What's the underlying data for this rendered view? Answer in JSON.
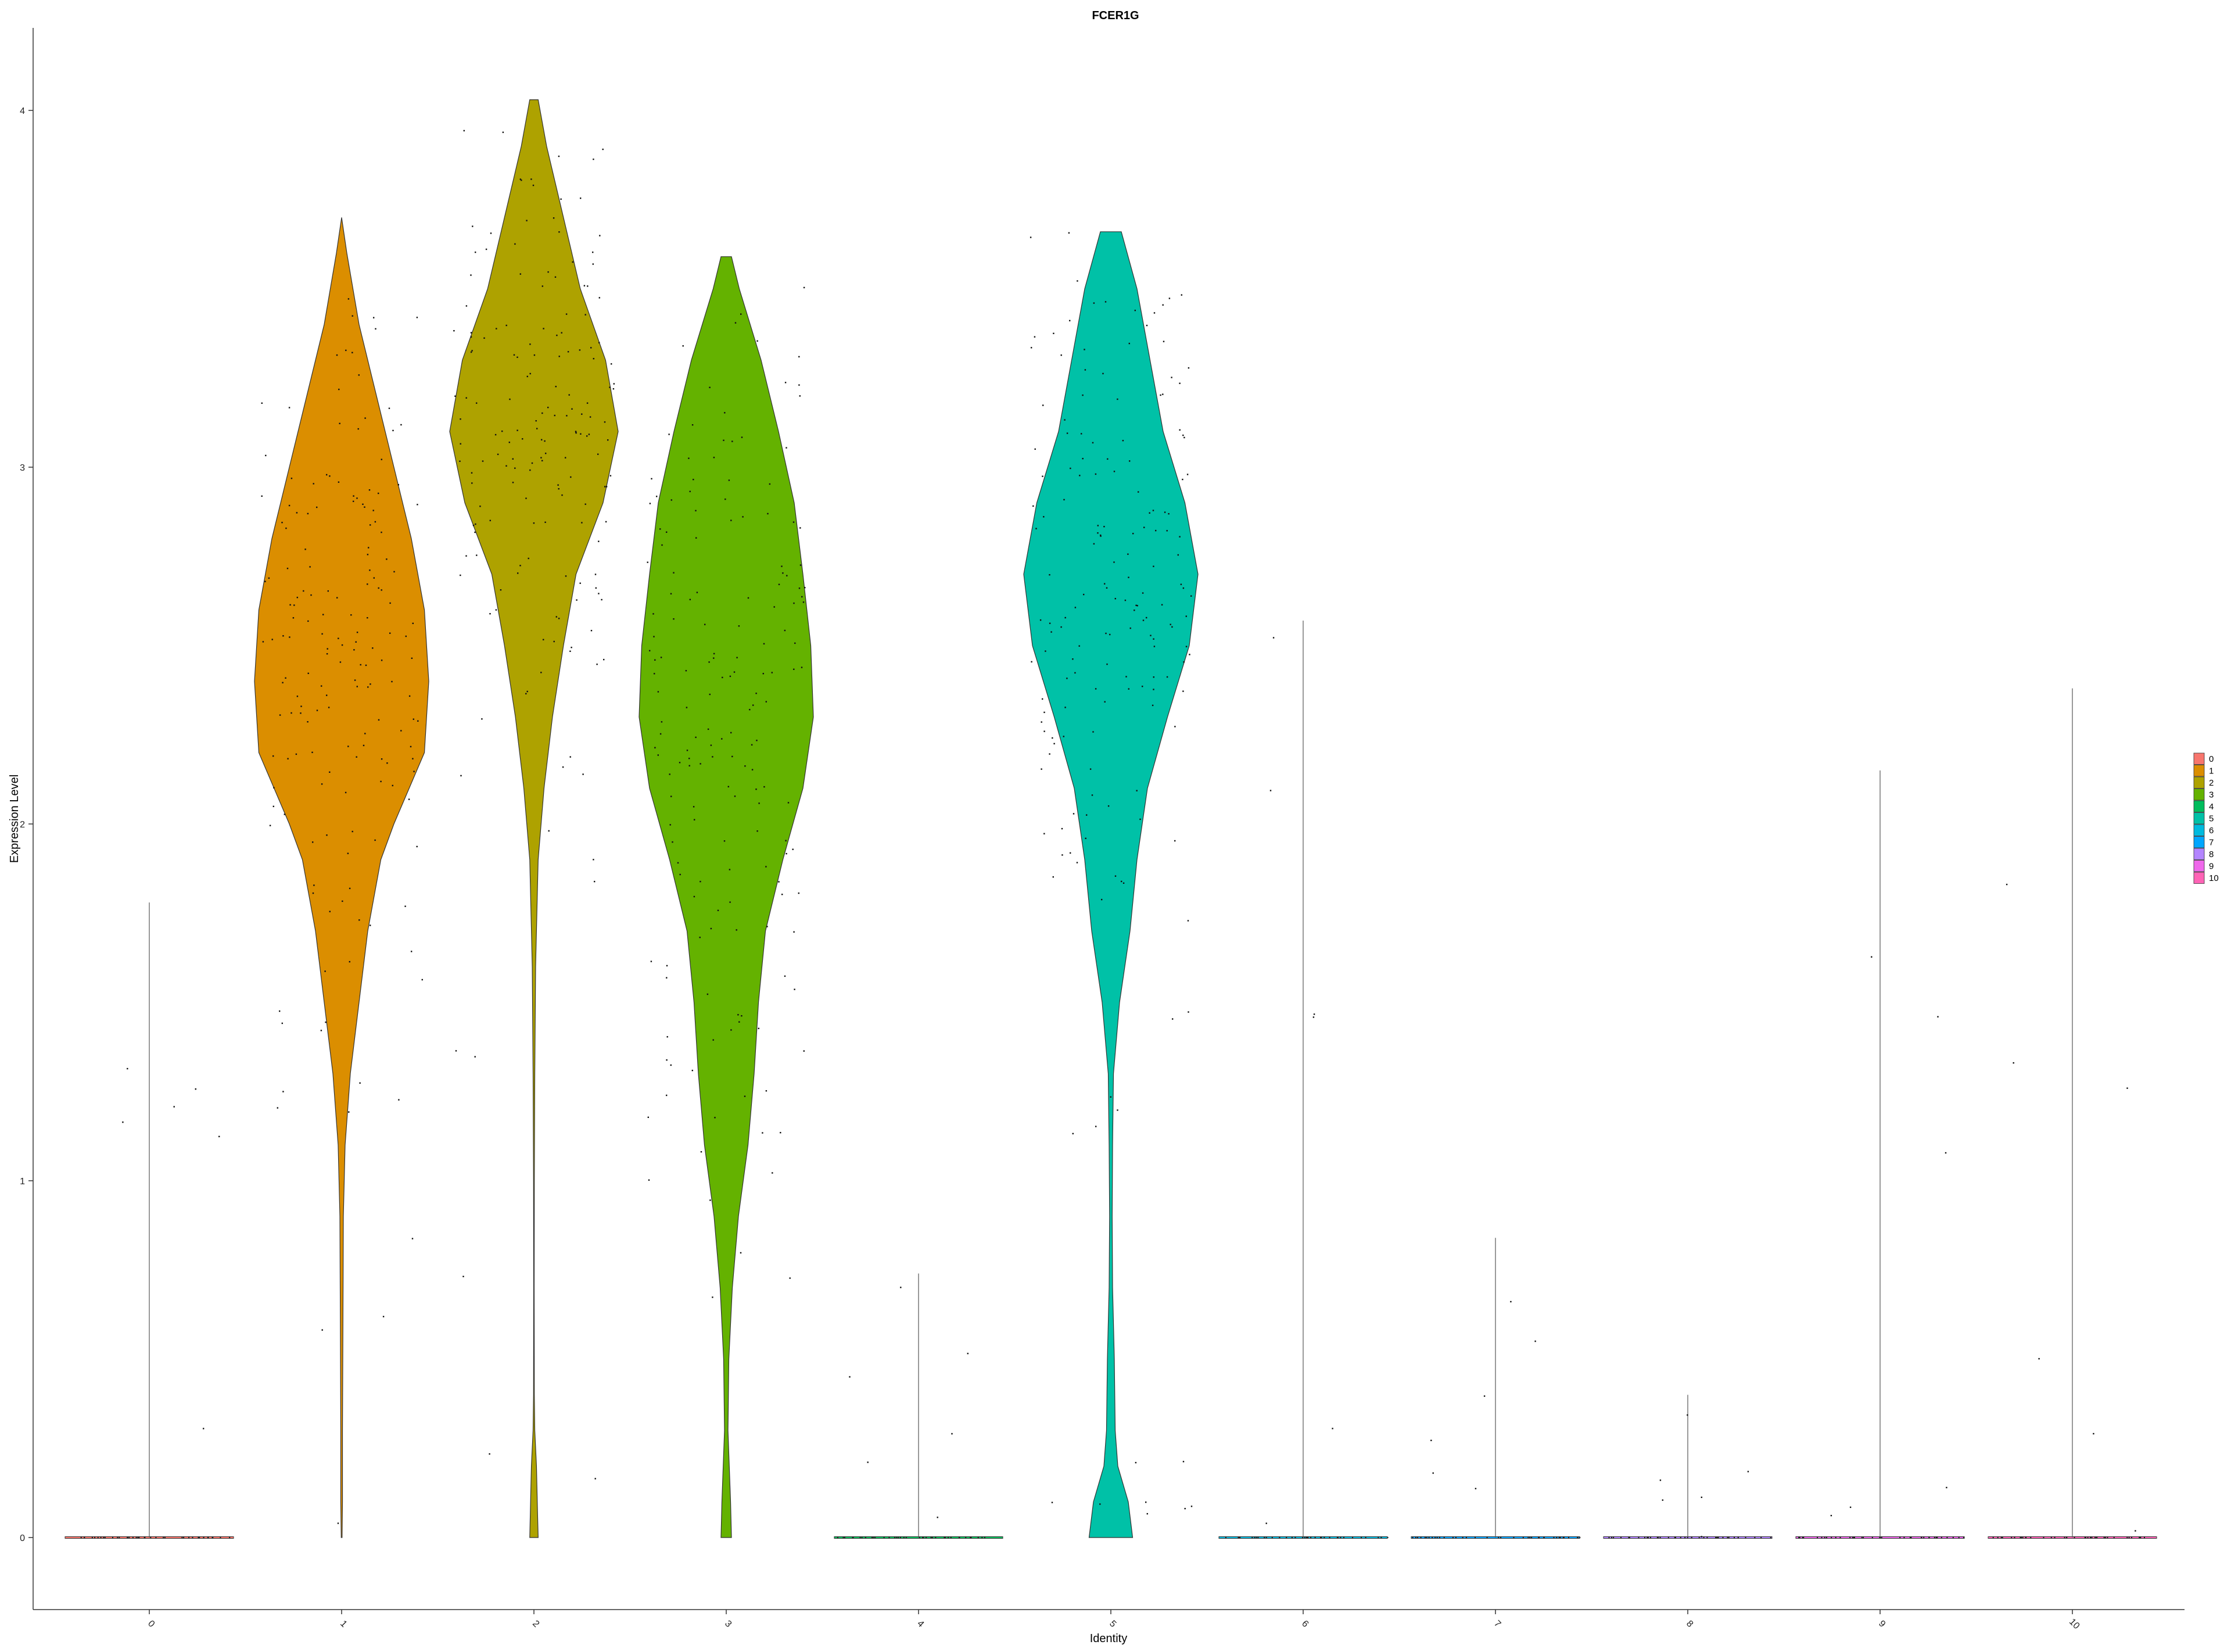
{
  "chart_data": {
    "type": "violin",
    "title": "FCER1G",
    "xlabel": "Identity",
    "ylabel": "Expression Level",
    "ylim": [
      -0.18,
      4.22
    ],
    "yticks": [
      0,
      1,
      2,
      3,
      4
    ],
    "legend_placement": "right",
    "categories": [
      "0",
      "1",
      "2",
      "3",
      "4",
      "5",
      "6",
      "7",
      "8",
      "9",
      "10"
    ],
    "colors": [
      "#F8766D",
      "#DB8E00",
      "#AEA200",
      "#64B200",
      "#00BD5C",
      "#00C1A7",
      "#00BADE",
      "#00A6FF",
      "#B385FF",
      "#EF67EB",
      "#FF63B6"
    ],
    "series": [
      {
        "name": "0",
        "max": 1.78,
        "violin": []
      },
      {
        "name": "1",
        "max": 3.7,
        "violin": [
          [
            0,
            0.005
          ],
          [
            0.1,
            0.01
          ],
          [
            0.3,
            0.01
          ],
          [
            0.6,
            0.015
          ],
          [
            0.9,
            0.02
          ],
          [
            1.1,
            0.04
          ],
          [
            1.3,
            0.1
          ],
          [
            1.5,
            0.2
          ],
          [
            1.7,
            0.3
          ],
          [
            1.9,
            0.45
          ],
          [
            2.0,
            0.6
          ],
          [
            2.2,
            0.95
          ],
          [
            2.4,
            1.0
          ],
          [
            2.6,
            0.95
          ],
          [
            2.8,
            0.8
          ],
          [
            3.0,
            0.6
          ],
          [
            3.2,
            0.4
          ],
          [
            3.4,
            0.2
          ],
          [
            3.6,
            0.06
          ],
          [
            3.7,
            0.0
          ]
        ]
      },
      {
        "name": "2",
        "max": 4.03,
        "violin": [
          [
            0,
            0.05
          ],
          [
            0.1,
            0.04
          ],
          [
            0.2,
            0.03
          ],
          [
            0.3,
            0.01
          ],
          [
            0.4,
            0.005
          ],
          [
            0.7,
            0.003
          ],
          [
            1.0,
            0.005
          ],
          [
            1.3,
            0.01
          ],
          [
            1.6,
            0.02
          ],
          [
            1.9,
            0.05
          ],
          [
            2.1,
            0.12
          ],
          [
            2.3,
            0.22
          ],
          [
            2.5,
            0.35
          ],
          [
            2.7,
            0.5
          ],
          [
            2.9,
            0.82
          ],
          [
            3.1,
            1.0
          ],
          [
            3.3,
            0.85
          ],
          [
            3.5,
            0.55
          ],
          [
            3.7,
            0.35
          ],
          [
            3.9,
            0.15
          ],
          [
            4.03,
            0.05
          ]
        ]
      },
      {
        "name": "3",
        "max": 3.59,
        "violin": [
          [
            0,
            0.06
          ],
          [
            0.1,
            0.05
          ],
          [
            0.3,
            0.02
          ],
          [
            0.5,
            0.03
          ],
          [
            0.7,
            0.07
          ],
          [
            0.9,
            0.14
          ],
          [
            1.1,
            0.25
          ],
          [
            1.3,
            0.32
          ],
          [
            1.5,
            0.37
          ],
          [
            1.7,
            0.45
          ],
          [
            1.9,
            0.65
          ],
          [
            2.1,
            0.88
          ],
          [
            2.3,
            1.0
          ],
          [
            2.5,
            0.97
          ],
          [
            2.7,
            0.88
          ],
          [
            2.9,
            0.78
          ],
          [
            3.1,
            0.6
          ],
          [
            3.3,
            0.4
          ],
          [
            3.5,
            0.15
          ],
          [
            3.59,
            0.06
          ]
        ]
      },
      {
        "name": "4",
        "max": 0.74,
        "violin": []
      },
      {
        "name": "5",
        "max": 3.66,
        "violin": [
          [
            0,
            0.25
          ],
          [
            0.1,
            0.2
          ],
          [
            0.2,
            0.08
          ],
          [
            0.3,
            0.05
          ],
          [
            0.5,
            0.04
          ],
          [
            0.7,
            0.02
          ],
          [
            0.9,
            0.015
          ],
          [
            1.1,
            0.02
          ],
          [
            1.3,
            0.03
          ],
          [
            1.5,
            0.1
          ],
          [
            1.7,
            0.22
          ],
          [
            1.9,
            0.3
          ],
          [
            2.1,
            0.42
          ],
          [
            2.3,
            0.65
          ],
          [
            2.5,
            0.9
          ],
          [
            2.7,
            1.0
          ],
          [
            2.9,
            0.85
          ],
          [
            3.1,
            0.6
          ],
          [
            3.3,
            0.45
          ],
          [
            3.5,
            0.3
          ],
          [
            3.66,
            0.12
          ]
        ]
      },
      {
        "name": "6",
        "max": 2.57,
        "violin": []
      },
      {
        "name": "7",
        "max": 0.84,
        "violin": []
      },
      {
        "name": "8",
        "max": 0.4,
        "violin": []
      },
      {
        "name": "9",
        "max": 2.15,
        "violin": []
      },
      {
        "name": "10",
        "max": 2.38,
        "violin": []
      }
    ]
  }
}
